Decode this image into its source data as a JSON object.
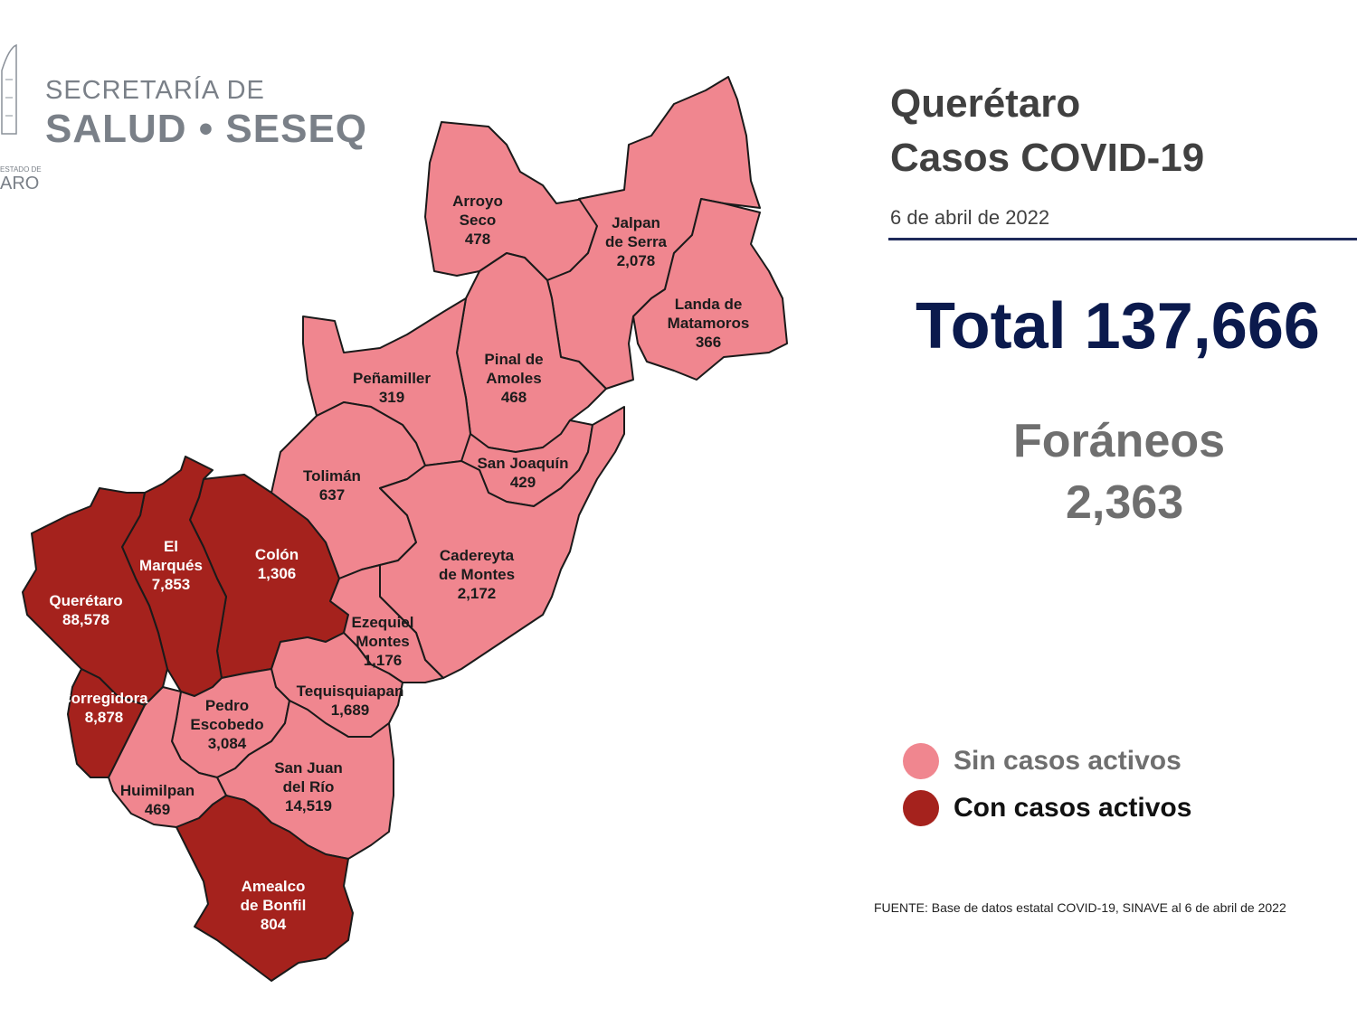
{
  "header": {
    "logo_line1": "SECRETARÍA DE",
    "logo_line2": "SALUD • SESEQ",
    "logo_small": "ESTADO DE",
    "logo_small2": "ARO"
  },
  "title": {
    "line1": "Querétaro",
    "line2": "Casos COVID-19"
  },
  "date": "6 de abril de 2022",
  "total": "Total 137,666",
  "foraneos": {
    "label": "Foráneos",
    "value": "2,363"
  },
  "legend": [
    {
      "label": "Sin casos activos",
      "color": "#f0868f",
      "text_color": "#6f6f6f"
    },
    {
      "label": "Con casos activos",
      "color": "#a5221d",
      "text_color": "#111111"
    }
  ],
  "source": "FUENTE: Base de datos estatal COVID-19, SINAVE al 6 de abril de 2022",
  "municipalities": [
    {
      "name_lines": [
        "Arroyo",
        "Seco"
      ],
      "cases": "478",
      "active": false
    },
    {
      "name_lines": [
        "Jalpan",
        "de Serra"
      ],
      "cases": "2,078",
      "active": false
    },
    {
      "name_lines": [
        "Landa de",
        "Matamoros"
      ],
      "cases": "366",
      "active": false
    },
    {
      "name_lines": [
        "Pinal de",
        "Amoles"
      ],
      "cases": "468",
      "active": false
    },
    {
      "name_lines": [
        "Peñamiller"
      ],
      "cases": "319",
      "active": false
    },
    {
      "name_lines": [
        "San Joaquín"
      ],
      "cases": "429",
      "active": false
    },
    {
      "name_lines": [
        "Tolimán"
      ],
      "cases": "637",
      "active": false
    },
    {
      "name_lines": [
        "Cadereyta",
        "de Montes"
      ],
      "cases": "2,172",
      "active": false
    },
    {
      "name_lines": [
        "Colón"
      ],
      "cases": "1,306",
      "active": true
    },
    {
      "name_lines": [
        "El",
        "Marqués"
      ],
      "cases": "7,853",
      "active": true
    },
    {
      "name_lines": [
        "Querétaro"
      ],
      "cases": "88,578",
      "active": true
    },
    {
      "name_lines": [
        "Ezequiel",
        "Montes"
      ],
      "cases": "1,176",
      "active": false
    },
    {
      "name_lines": [
        "Tequisquiapan"
      ],
      "cases": "1,689",
      "active": false
    },
    {
      "name_lines": [
        "Corregidora"
      ],
      "cases": "8,878",
      "active": true
    },
    {
      "name_lines": [
        "Pedro",
        "Escobedo"
      ],
      "cases": "3,084",
      "active": false
    },
    {
      "name_lines": [
        "San Juan",
        "del Río"
      ],
      "cases": "14,519",
      "active": false
    },
    {
      "name_lines": [
        "Huimilpan"
      ],
      "cases": "469",
      "active": false
    },
    {
      "name_lines": [
        "Amealco",
        "de Bonfil"
      ],
      "cases": "804",
      "active": true
    }
  ]
}
